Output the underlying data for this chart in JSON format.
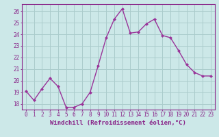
{
  "x": [
    0,
    1,
    2,
    3,
    4,
    5,
    6,
    7,
    8,
    9,
    10,
    11,
    12,
    13,
    14,
    15,
    16,
    17,
    18,
    19,
    20,
    21,
    22,
    23
  ],
  "y": [
    19.1,
    18.3,
    19.3,
    20.2,
    19.5,
    17.7,
    17.7,
    18.0,
    19.0,
    21.3,
    23.7,
    25.3,
    26.2,
    24.1,
    24.2,
    24.9,
    25.3,
    23.9,
    23.7,
    22.6,
    21.4,
    20.7,
    20.4,
    20.4
  ],
  "line_color": "#993399",
  "marker": "D",
  "marker_size": 2,
  "bg_color": "#cce8e8",
  "grid_color": "#aacccc",
  "xlabel": "Windchill (Refroidissement éolien,°C)",
  "xlabel_fontsize": 6.5,
  "yticks": [
    18,
    19,
    20,
    21,
    22,
    23,
    24,
    25,
    26
  ],
  "xticks": [
    0,
    1,
    2,
    3,
    4,
    5,
    6,
    7,
    8,
    9,
    10,
    11,
    12,
    13,
    14,
    15,
    16,
    17,
    18,
    19,
    20,
    21,
    22,
    23
  ],
  "ylim": [
    17.5,
    26.6
  ],
  "xlim": [
    -0.5,
    23.5
  ],
  "tick_fontsize": 5.5,
  "tick_color": "#882288",
  "axis_color": "#882288",
  "linewidth": 1.0
}
